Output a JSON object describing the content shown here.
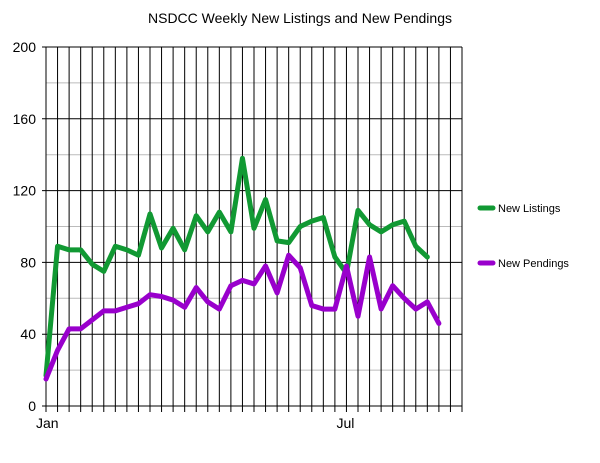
{
  "chart_data": {
    "type": "line",
    "title": "NSDCC Weekly New Listings and New Pendings",
    "xlabel": "",
    "ylabel": "",
    "ylim": [
      0,
      200
    ],
    "y_ticks": [
      0,
      40,
      80,
      120,
      160,
      200
    ],
    "x_tick_labels": [
      {
        "label": "Jan",
        "index": 0
      },
      {
        "label": "Jul",
        "index": 26
      }
    ],
    "grid": true,
    "legend_position": "right",
    "series": [
      {
        "name": "New Listings",
        "color": "#119933",
        "values": [
          17,
          89,
          87,
          87,
          79,
          75,
          89,
          87,
          84,
          107,
          88,
          99,
          87,
          106,
          97,
          108,
          97,
          138,
          99,
          115,
          92,
          91,
          100,
          103,
          105,
          83,
          74,
          109,
          101,
          97,
          101,
          103,
          89,
          83
        ]
      },
      {
        "name": "New Pendings",
        "color": "#9900cc",
        "values": [
          15,
          31,
          43,
          43,
          48,
          53,
          53,
          55,
          57,
          62,
          61,
          59,
          55,
          66,
          58,
          54,
          67,
          70,
          68,
          78,
          63,
          84,
          77,
          56,
          54,
          54,
          78,
          50,
          83,
          54,
          67,
          60,
          54,
          58,
          46
        ]
      }
    ]
  }
}
